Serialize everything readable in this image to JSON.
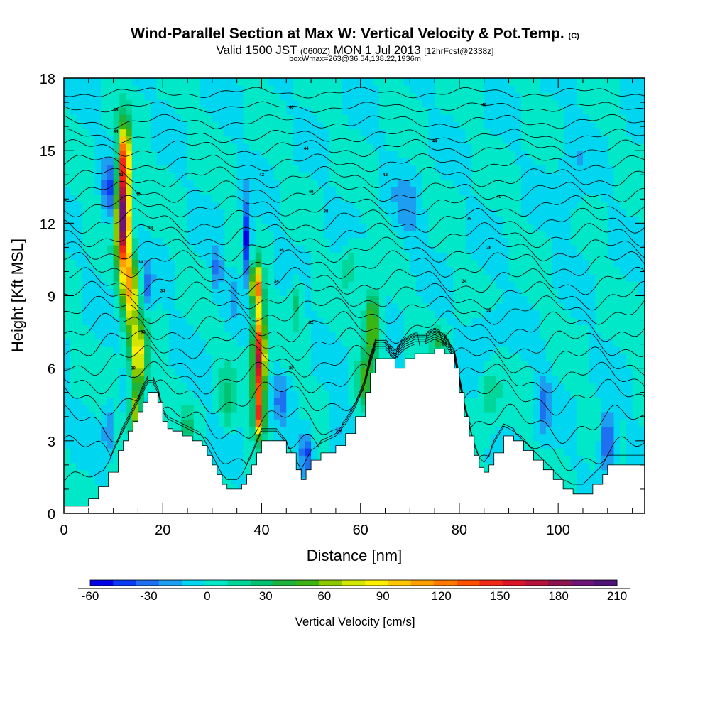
{
  "chart_data": {
    "type": "heatmap",
    "title_main": "Wind-Parallel Section at Max W: Vertical Velocity & Pot.Temp.",
    "title_mark": "(C)",
    "subtitle_valid": "Valid 1500 JST",
    "subtitle_utc": "(0600Z)",
    "subtitle_date": "MON 1 Jul 2013",
    "subtitle_fcst": "[12hrFcst@2338z]",
    "subtitle_box": "boxWmax=263@36.54,138.22,1936m",
    "xlabel": "Distance [nm]",
    "ylabel": "Height [Kft MSL]",
    "xlim": [
      0,
      117.5
    ],
    "ylim": [
      0,
      18
    ],
    "xticks": [
      0,
      20,
      40,
      60,
      80,
      100
    ],
    "yticks": [
      0,
      3,
      6,
      9,
      12,
      15,
      18
    ],
    "colorbar": {
      "title": "Vertical Velocity [cm/s]",
      "range": [
        -60,
        210
      ],
      "step": 10,
      "tick_values": [
        -60,
        -30,
        0,
        30,
        60,
        90,
        120,
        150,
        180,
        210
      ],
      "colors": [
        "#0000e8",
        "#0a3cf5",
        "#1e70f0",
        "#1e9ef0",
        "#00d6f0",
        "#00e8c8",
        "#00d69a",
        "#00c270",
        "#1eb43c",
        "#3cb414",
        "#8cc800",
        "#d2e600",
        "#ffee00",
        "#ffc800",
        "#ff9e00",
        "#ff7800",
        "#ff5000",
        "#f02814",
        "#dc1428",
        "#b4143c",
        "#8c1450",
        "#6e1478",
        "#501478"
      ]
    },
    "terrain": [
      [
        0,
        0.3
      ],
      [
        3,
        0.3
      ],
      [
        5,
        0.6
      ],
      [
        7,
        1.1
      ],
      [
        9,
        1.7
      ],
      [
        11,
        2.6
      ],
      [
        12,
        3.0
      ],
      [
        13,
        3.4
      ],
      [
        14,
        3.8
      ],
      [
        15,
        4.2
      ],
      [
        16,
        4.6
      ],
      [
        17,
        5.0
      ],
      [
        18,
        5.0
      ],
      [
        19,
        4.6
      ],
      [
        20,
        3.8
      ],
      [
        21,
        3.5
      ],
      [
        22,
        3.4
      ],
      [
        24,
        3.2
      ],
      [
        26,
        3.0
      ],
      [
        28,
        2.8
      ],
      [
        29,
        2.4
      ],
      [
        30,
        2.0
      ],
      [
        31,
        1.6
      ],
      [
        32,
        1.2
      ],
      [
        33,
        1.0
      ],
      [
        35,
        1.0
      ],
      [
        36,
        1.2
      ],
      [
        37,
        1.6
      ],
      [
        38,
        2.0
      ],
      [
        39,
        2.5
      ],
      [
        40,
        3.0
      ],
      [
        43,
        3.0
      ],
      [
        45,
        2.5
      ],
      [
        47,
        1.8
      ],
      [
        48,
        1.4
      ],
      [
        49,
        1.8
      ],
      [
        50,
        2.2
      ],
      [
        52,
        2.5
      ],
      [
        55,
        2.8
      ],
      [
        57,
        3.3
      ],
      [
        59,
        4.0
      ],
      [
        61,
        5.0
      ],
      [
        62,
        5.8
      ],
      [
        63,
        6.4
      ],
      [
        65,
        6.4
      ],
      [
        67,
        6.0
      ],
      [
        69,
        6.4
      ],
      [
        71,
        6.6
      ],
      [
        73,
        6.6
      ],
      [
        75,
        6.8
      ],
      [
        77,
        6.6
      ],
      [
        79,
        6.0
      ],
      [
        80,
        5.0
      ],
      [
        81,
        4.0
      ],
      [
        82,
        3.2
      ],
      [
        83,
        2.4
      ],
      [
        84,
        1.9
      ],
      [
        85,
        1.7
      ],
      [
        86,
        2.0
      ],
      [
        87,
        2.5
      ],
      [
        89,
        3.2
      ],
      [
        91,
        3.0
      ],
      [
        93,
        2.6
      ],
      [
        95,
        2.2
      ],
      [
        97,
        1.8
      ],
      [
        99,
        1.4
      ],
      [
        101,
        1.0
      ],
      [
        103,
        0.8
      ],
      [
        105,
        0.8
      ],
      [
        107,
        1.2
      ],
      [
        109,
        1.6
      ],
      [
        110,
        2.0
      ],
      [
        117.5,
        2.0
      ]
    ],
    "w_features": [
      {
        "x": 12,
        "y": 12.4,
        "sx": 1.3,
        "sy": 2.4,
        "w": 200
      },
      {
        "x": 12.4,
        "y": 15.0,
        "sx": 1.0,
        "sy": 1.1,
        "w": 90
      },
      {
        "x": 13.5,
        "y": 9.2,
        "sx": 1.4,
        "sy": 1.5,
        "w": 100
      },
      {
        "x": 15,
        "y": 6.5,
        "sx": 1.6,
        "sy": 1.4,
        "w": 90
      },
      {
        "x": 14.5,
        "y": 4.2,
        "sx": 1.2,
        "sy": 0.9,
        "w": 70
      },
      {
        "x": 39.5,
        "y": 6.4,
        "sx": 1.2,
        "sy": 2.0,
        "w": 170
      },
      {
        "x": 39.0,
        "y": 9.4,
        "sx": 1.1,
        "sy": 0.9,
        "w": 110
      },
      {
        "x": 39.5,
        "y": 4.0,
        "sx": 1.0,
        "sy": 0.9,
        "w": 100
      },
      {
        "x": 62.5,
        "y": 7.8,
        "sx": 1.6,
        "sy": 1.3,
        "w": 70
      },
      {
        "x": 61,
        "y": 5.5,
        "sx": 1.4,
        "sy": 1.2,
        "w": 45
      },
      {
        "x": 9,
        "y": 13.3,
        "sx": 1.1,
        "sy": 1.3,
        "w": -40
      },
      {
        "x": 9,
        "y": 3.5,
        "sx": 1.0,
        "sy": 0.9,
        "w": -30
      },
      {
        "x": 37,
        "y": 11.3,
        "sx": 0.9,
        "sy": 1.6,
        "w": -60
      },
      {
        "x": 31,
        "y": 10.0,
        "sx": 1.0,
        "sy": 0.9,
        "w": -30
      },
      {
        "x": 34,
        "y": 9.0,
        "sx": 0.8,
        "sy": 0.7,
        "w": -20
      },
      {
        "x": 17,
        "y": 9.3,
        "sx": 0.9,
        "sy": 1.0,
        "w": -25
      },
      {
        "x": 49,
        "y": 2.6,
        "sx": 1.2,
        "sy": 0.9,
        "w": -40
      },
      {
        "x": 110,
        "y": 3.0,
        "sx": 1.5,
        "sy": 1.2,
        "w": -50
      },
      {
        "x": 97,
        "y": 4.5,
        "sx": 1.5,
        "sy": 1.2,
        "w": -30
      },
      {
        "x": 44,
        "y": 4.8,
        "sx": 1.3,
        "sy": 1.0,
        "w": -25
      },
      {
        "x": 55,
        "y": 3.5,
        "sx": 1.4,
        "sy": 1.0,
        "w": -20
      },
      {
        "x": 70,
        "y": 12.5,
        "sx": 3.0,
        "sy": 1.5,
        "w": -15
      },
      {
        "x": 103,
        "y": 13.5,
        "sx": 3.0,
        "sy": 2.0,
        "w": -12
      },
      {
        "x": 85,
        "y": 7.5,
        "sx": 3.0,
        "sy": 1.2,
        "w": -15
      },
      {
        "x": 25,
        "y": 3.5,
        "sx": 1.0,
        "sy": 0.8,
        "w": 25
      },
      {
        "x": 47,
        "y": 8.8,
        "sx": 1.2,
        "sy": 0.9,
        "w": 30
      },
      {
        "x": 76,
        "y": 7.0,
        "sx": 1.2,
        "sy": 0.6,
        "w": 35
      },
      {
        "x": 58,
        "y": 10.5,
        "sx": 2.0,
        "sy": 1.0,
        "w": 18
      },
      {
        "x": 33,
        "y": 4.5,
        "sx": 1.5,
        "sy": 1.2,
        "w": 25
      },
      {
        "x": 86,
        "y": 5.0,
        "sx": 2.0,
        "sy": 1.2,
        "w": 22
      }
    ],
    "theta_contours": [
      {
        "base": 1.3,
        "amp": 0.4
      },
      {
        "base": 2.5,
        "amp": 0.55
      },
      {
        "base": 3.7,
        "amp": 0.55
      },
      {
        "base": 4.8,
        "amp": 0.5
      },
      {
        "base": 5.6,
        "amp": 0.45
      },
      {
        "base": 6.3,
        "amp": 0.45
      },
      {
        "base": 7.0,
        "amp": 0.45
      },
      {
        "base": 7.7,
        "amp": 0.45
      },
      {
        "base": 8.4,
        "amp": 0.4
      },
      {
        "base": 9.0,
        "amp": 0.4
      },
      {
        "base": 9.6,
        "amp": 0.4
      },
      {
        "base": 10.3,
        "amp": 0.4
      },
      {
        "base": 10.9,
        "amp": 0.35
      },
      {
        "base": 11.5,
        "amp": 0.35
      },
      {
        "base": 12.1,
        "amp": 0.35
      },
      {
        "base": 12.7,
        "amp": 0.3
      },
      {
        "base": 13.3,
        "amp": 0.3
      },
      {
        "base": 13.9,
        "amp": 0.3
      },
      {
        "base": 14.5,
        "amp": 0.25
      },
      {
        "base": 15.1,
        "amp": 0.25
      },
      {
        "base": 15.6,
        "amp": 0.2
      },
      {
        "base": 16.2,
        "amp": 0.2
      },
      {
        "base": 16.8,
        "amp": 0.15
      },
      {
        "base": 17.4,
        "amp": 0.15
      }
    ],
    "contour_labels": [
      {
        "text": "48",
        "x": 10.5,
        "y": 16.7
      },
      {
        "text": "44",
        "x": 10.5,
        "y": 15.8
      },
      {
        "text": "46",
        "x": 46,
        "y": 16.8
      },
      {
        "text": "44",
        "x": 49,
        "y": 15.1
      },
      {
        "text": "42",
        "x": 11.5,
        "y": 14.0
      },
      {
        "text": "42",
        "x": 40,
        "y": 14.0
      },
      {
        "text": "42",
        "x": 65,
        "y": 14.0
      },
      {
        "text": "44",
        "x": 75,
        "y": 15.4
      },
      {
        "text": "46",
        "x": 85,
        "y": 16.9
      },
      {
        "text": "40",
        "x": 15,
        "y": 13.2
      },
      {
        "text": "40",
        "x": 50,
        "y": 13.3
      },
      {
        "text": "40",
        "x": 88,
        "y": 13.1
      },
      {
        "text": "38",
        "x": 17.5,
        "y": 11.8
      },
      {
        "text": "38",
        "x": 53,
        "y": 12.5
      },
      {
        "text": "38",
        "x": 82,
        "y": 12.2
      },
      {
        "text": "36",
        "x": 44,
        "y": 10.9
      },
      {
        "text": "36",
        "x": 86,
        "y": 11.0
      },
      {
        "text": "34",
        "x": 15.5,
        "y": 10.4
      },
      {
        "text": "34",
        "x": 43,
        "y": 9.6
      },
      {
        "text": "34",
        "x": 81,
        "y": 9.6
      },
      {
        "text": "34",
        "x": 20,
        "y": 9.2
      },
      {
        "text": "32",
        "x": 16,
        "y": 7.5
      },
      {
        "text": "32",
        "x": 50,
        "y": 7.9
      },
      {
        "text": "32",
        "x": 86,
        "y": 8.4
      },
      {
        "text": "30",
        "x": 14,
        "y": 6.0
      },
      {
        "text": "30",
        "x": 46,
        "y": 6.0
      },
      {
        "text": "30",
        "x": 77,
        "y": 7.0
      }
    ]
  }
}
